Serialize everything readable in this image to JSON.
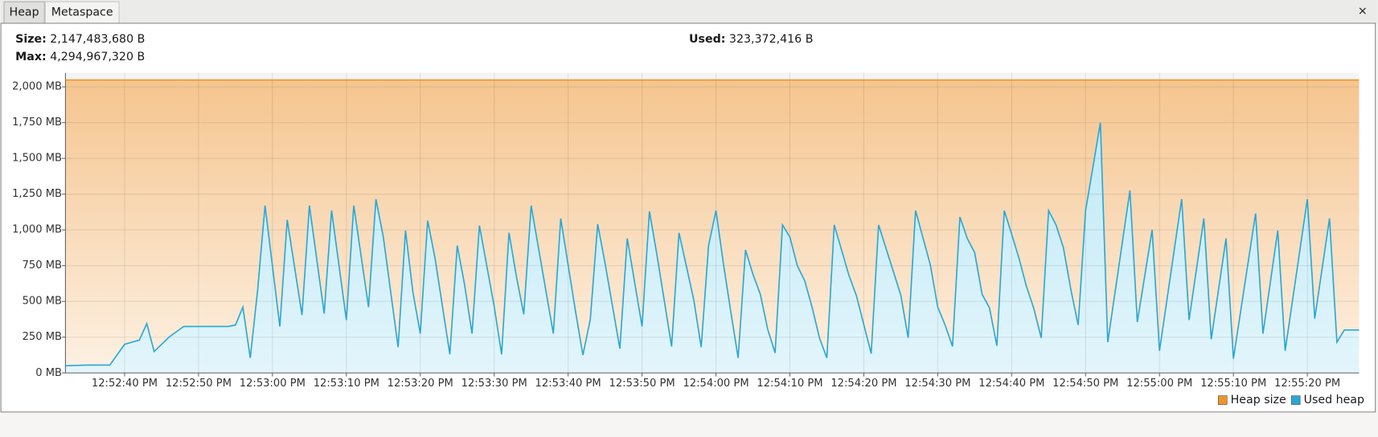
{
  "tabs": [
    "Heap",
    "Metaspace"
  ],
  "close": "×",
  "info": {
    "size_label": "Size:",
    "size": "2,147,483,680 B",
    "max_label": "Max:",
    "max": "4,294,967,320 B",
    "used_label": "Used:",
    "used": "323,372,416 B"
  },
  "chart_data": {
    "type": "area",
    "ylim": [
      0,
      2098
    ],
    "yticks": [
      {
        "value": 0,
        "label": "0 MB"
      },
      {
        "value": 250,
        "label": "250 MB"
      },
      {
        "value": 500,
        "label": "500 MB"
      },
      {
        "value": 750,
        "label": "750 MB"
      },
      {
        "value": 1000,
        "label": "1,000 MB"
      },
      {
        "value": 1250,
        "label": "1,250 MB"
      },
      {
        "value": 1500,
        "label": "1,500 MB"
      },
      {
        "value": 1750,
        "label": "1,750 MB"
      },
      {
        "value": 2000,
        "label": "2,000 MB"
      }
    ],
    "xlim": [
      "12:52:32 PM",
      "12:55:27 PM"
    ],
    "xticks": [
      "12:52:40 PM",
      "12:52:50 PM",
      "12:53:00 PM",
      "12:53:10 PM",
      "12:53:20 PM",
      "12:53:30 PM",
      "12:53:40 PM",
      "12:53:50 PM",
      "12:54:00 PM",
      "12:54:10 PM",
      "12:54:20 PM",
      "12:54:30 PM",
      "12:54:40 PM",
      "12:54:50 PM",
      "12:55:00 PM",
      "12:55:10 PM",
      "12:55:20 PM"
    ],
    "grid": true,
    "legend": "bottom-right",
    "series": [
      {
        "name": "Heap size",
        "color": "#f0932b",
        "x": [
          "12:52:32 PM",
          "12:55:27 PM"
        ],
        "values": [
          2048,
          2048
        ]
      },
      {
        "name": "Used heap",
        "color": "#2aa7d5",
        "x": [
          "12:52:32 PM",
          "12:52:35 PM",
          "12:52:38 PM",
          "12:52:40 PM",
          "12:52:42 PM",
          "12:52:43 PM",
          "12:52:44 PM",
          "12:52:46 PM",
          "12:52:48 PM",
          "12:52:50 PM",
          "12:52:54 PM",
          "12:52:55 PM",
          "12:52:56 PM",
          "12:52:57 PM",
          "12:52:58 PM",
          "12:52:59 PM",
          "12:53:01 PM",
          "12:53:02 PM",
          "12:53:04 PM",
          "12:53:05 PM",
          "12:53:07 PM",
          "12:53:08 PM",
          "12:53:10 PM",
          "12:53:11 PM",
          "12:53:13 PM",
          "12:53:14 PM",
          "12:53:15 PM",
          "12:53:17 PM",
          "12:53:18 PM",
          "12:53:19 PM",
          "12:53:20 PM",
          "12:53:21 PM",
          "12:53:22 PM",
          "12:53:24 PM",
          "12:53:25 PM",
          "12:53:26 PM",
          "12:53:27 PM",
          "12:53:28 PM",
          "12:53:30 PM",
          "12:53:31 PM",
          "12:53:32 PM",
          "12:53:33 PM",
          "12:53:34 PM",
          "12:53:35 PM",
          "12:53:36 PM",
          "12:53:38 PM",
          "12:53:39 PM",
          "12:53:41 PM",
          "12:53:42 PM",
          "12:53:43 PM",
          "12:53:44 PM",
          "12:53:45 PM",
          "12:53:47 PM",
          "12:53:48 PM",
          "12:53:50 PM",
          "12:53:51 PM",
          "12:53:52 PM",
          "12:53:54 PM",
          "12:53:55 PM",
          "12:53:57 PM",
          "12:53:58 PM",
          "12:53:59 PM",
          "12:54:00 PM",
          "12:54:01 PM",
          "12:54:02 PM",
          "12:54:03 PM",
          "12:54:04 PM",
          "12:54:05 PM",
          "12:54:06 PM",
          "12:54:07 PM",
          "12:54:08 PM",
          "12:54:09 PM",
          "12:54:10 PM",
          "12:54:11 PM",
          "12:54:12 PM",
          "12:54:13 PM",
          "12:54:14 PM",
          "12:54:15 PM",
          "12:54:16 PM",
          "12:54:18 PM",
          "12:54:19 PM",
          "12:54:21 PM",
          "12:54:22 PM",
          "12:54:25 PM",
          "12:54:26 PM",
          "12:54:27 PM",
          "12:54:29 PM",
          "12:54:30 PM",
          "12:54:31 PM",
          "12:54:32 PM",
          "12:54:33 PM",
          "12:54:34 PM",
          "12:54:35 PM",
          "12:54:36 PM",
          "12:54:37 PM",
          "12:54:38 PM",
          "12:54:39 PM",
          "12:54:40 PM",
          "12:54:41 PM",
          "12:54:42 PM",
          "12:54:43 PM",
          "12:54:44 PM",
          "12:54:45 PM",
          "12:54:46 PM",
          "12:54:47 PM",
          "12:54:48 PM",
          "12:54:49 PM",
          "12:54:50 PM",
          "12:54:51 PM",
          "12:54:52 PM",
          "12:54:53 PM",
          "12:54:56 PM",
          "12:54:57 PM",
          "12:54:59 PM",
          "12:55:00 PM",
          "12:55:03 PM",
          "12:55:04 PM",
          "12:55:06 PM",
          "12:55:07 PM",
          "12:55:09 PM",
          "12:55:10 PM",
          "12:55:13 PM",
          "12:55:14 PM",
          "12:55:16 PM",
          "12:55:17 PM",
          "12:55:20 PM",
          "12:55:21 PM",
          "12:55:23 PM",
          "12:55:24 PM",
          "12:55:25 PM",
          "12:55:27 PM"
        ],
        "values": [
          50,
          55,
          55,
          200,
          230,
          345,
          150,
          250,
          325,
          325,
          325,
          335,
          460,
          105,
          580,
          1170,
          325,
          1070,
          405,
          1170,
          415,
          1135,
          370,
          1170,
          460,
          1215,
          950,
          180,
          995,
          565,
          275,
          1065,
          800,
          130,
          890,
          615,
          275,
          1030,
          465,
          130,
          980,
          675,
          410,
          1170,
          870,
          275,
          1080,
          430,
          125,
          375,
          1040,
          765,
          170,
          940,
          325,
          1130,
          830,
          185,
          980,
          510,
          180,
          890,
          1135,
          765,
          430,
          105,
          860,
          690,
          550,
          305,
          140,
          1035,
          950,
          750,
          645,
          460,
          245,
          105,
          1035,
          680,
          540,
          135,
          1035,
          545,
          245,
          1135,
          755,
          460,
          335,
          185,
          1090,
          940,
          840,
          550,
          455,
          190,
          1135,
          970,
          800,
          605,
          450,
          245,
          1135,
          1035,
          875,
          585,
          335,
          1135,
          1440,
          1750,
          215,
          1275,
          355,
          1000,
          155,
          1215,
          370,
          1080,
          235,
          940,
          100,
          1115,
          275,
          995,
          155,
          1215,
          380,
          1080,
          215,
          300,
          300
        ]
      }
    ]
  }
}
